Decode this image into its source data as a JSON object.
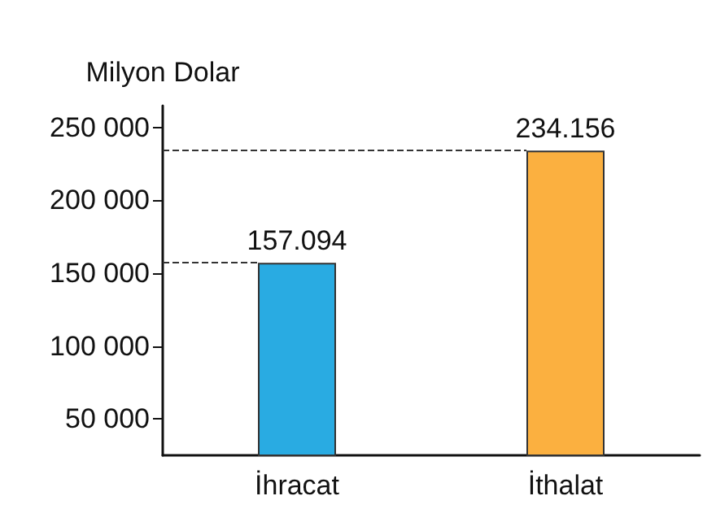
{
  "chart_data": {
    "type": "bar",
    "ylabel": "Milyon Dolar",
    "categories": [
      "İhracat",
      "İthalat"
    ],
    "values": [
      157094,
      234156
    ],
    "colors": [
      "#29abe2",
      "#fbb040"
    ],
    "value_labels": [
      "157.094",
      "234.156"
    ],
    "ylim": [
      25000,
      265000
    ],
    "yticks": [
      {
        "value": 50000,
        "label": "50 000"
      },
      {
        "value": 100000,
        "label": "100 000"
      },
      {
        "value": 150000,
        "label": "150 000"
      },
      {
        "value": 200000,
        "label": "200 000"
      },
      {
        "value": 250000,
        "label": "250 000"
      }
    ],
    "ref_lines": [
      {
        "axis": "y",
        "value": 157094,
        "line_style": "dashed",
        "color": "#333333"
      },
      {
        "axis": "y",
        "value": 234156,
        "line_style": "dashed",
        "color": "#333333"
      }
    ]
  }
}
